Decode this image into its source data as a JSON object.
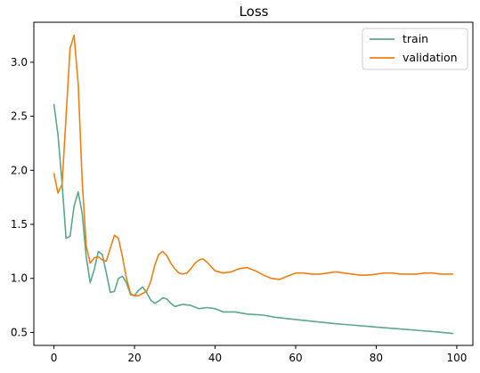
{
  "chart_data": {
    "type": "line",
    "title": "Loss",
    "xlabel": "",
    "ylabel": "",
    "xlim": [
      -5,
      104
    ],
    "ylim": [
      0.38,
      3.37
    ],
    "x_ticks": [
      0,
      20,
      40,
      60,
      80,
      100
    ],
    "y_ticks": [
      0.5,
      1.0,
      1.5,
      2.0,
      2.5,
      3.0
    ],
    "x_tick_labels": [
      "0",
      "20",
      "40",
      "60",
      "80",
      "100"
    ],
    "y_tick_labels": [
      "0.5",
      "1.0",
      "1.5",
      "2.0",
      "2.5",
      "3.0"
    ],
    "grid": false,
    "legend_position": "top-right",
    "series": [
      {
        "name": "train",
        "color": "#5aa78a",
        "points": [
          [
            0,
            2.61
          ],
          [
            1,
            2.33
          ],
          [
            2,
            1.88
          ],
          [
            3,
            1.37
          ],
          [
            4,
            1.39
          ],
          [
            5,
            1.67
          ],
          [
            6,
            1.8
          ],
          [
            7,
            1.6
          ],
          [
            8,
            1.2
          ],
          [
            9,
            0.96
          ],
          [
            10,
            1.08
          ],
          [
            11,
            1.25
          ],
          [
            12,
            1.22
          ],
          [
            13,
            1.05
          ],
          [
            14,
            0.87
          ],
          [
            15,
            0.88
          ],
          [
            16,
            1.0
          ],
          [
            17,
            1.02
          ],
          [
            18,
            0.96
          ],
          [
            19,
            0.85
          ],
          [
            20,
            0.84
          ],
          [
            21,
            0.89
          ],
          [
            22,
            0.92
          ],
          [
            23,
            0.87
          ],
          [
            24,
            0.8
          ],
          [
            25,
            0.77
          ],
          [
            26,
            0.79
          ],
          [
            27,
            0.82
          ],
          [
            28,
            0.81
          ],
          [
            29,
            0.77
          ],
          [
            30,
            0.74
          ],
          [
            32,
            0.76
          ],
          [
            34,
            0.75
          ],
          [
            36,
            0.72
          ],
          [
            38,
            0.73
          ],
          [
            40,
            0.72
          ],
          [
            42,
            0.69
          ],
          [
            45,
            0.69
          ],
          [
            48,
            0.67
          ],
          [
            52,
            0.66
          ],
          [
            55,
            0.64
          ],
          [
            60,
            0.62
          ],
          [
            65,
            0.6
          ],
          [
            70,
            0.58
          ],
          [
            75,
            0.565
          ],
          [
            80,
            0.55
          ],
          [
            85,
            0.535
          ],
          [
            90,
            0.52
          ],
          [
            95,
            0.505
          ],
          [
            99,
            0.49
          ]
        ]
      },
      {
        "name": "validation",
        "color": "#f07f12",
        "points": [
          [
            0,
            1.97
          ],
          [
            1,
            1.79
          ],
          [
            2,
            1.87
          ],
          [
            3,
            2.5
          ],
          [
            4,
            3.13
          ],
          [
            5,
            3.25
          ],
          [
            6,
            2.8
          ],
          [
            7,
            1.9
          ],
          [
            8,
            1.3
          ],
          [
            9,
            1.14
          ],
          [
            10,
            1.19
          ],
          [
            11,
            1.2
          ],
          [
            12,
            1.17
          ],
          [
            13,
            1.16
          ],
          [
            14,
            1.28
          ],
          [
            15,
            1.4
          ],
          [
            16,
            1.37
          ],
          [
            17,
            1.2
          ],
          [
            18,
            1.0
          ],
          [
            19,
            0.86
          ],
          [
            20,
            0.84
          ],
          [
            21,
            0.84
          ],
          [
            22,
            0.86
          ],
          [
            23,
            0.88
          ],
          [
            24,
            0.97
          ],
          [
            25,
            1.12
          ],
          [
            26,
            1.22
          ],
          [
            27,
            1.25
          ],
          [
            28,
            1.21
          ],
          [
            29,
            1.14
          ],
          [
            30,
            1.09
          ],
          [
            31,
            1.05
          ],
          [
            32,
            1.04
          ],
          [
            33,
            1.05
          ],
          [
            34,
            1.09
          ],
          [
            35,
            1.14
          ],
          [
            36,
            1.17
          ],
          [
            37,
            1.18
          ],
          [
            38,
            1.15
          ],
          [
            39,
            1.11
          ],
          [
            40,
            1.07
          ],
          [
            42,
            1.05
          ],
          [
            44,
            1.06
          ],
          [
            46,
            1.09
          ],
          [
            48,
            1.1
          ],
          [
            50,
            1.07
          ],
          [
            52,
            1.03
          ],
          [
            54,
            1.0
          ],
          [
            56,
            0.99
          ],
          [
            58,
            1.02
          ],
          [
            60,
            1.05
          ],
          [
            62,
            1.05
          ],
          [
            64,
            1.04
          ],
          [
            66,
            1.04
          ],
          [
            68,
            1.05
          ],
          [
            70,
            1.06
          ],
          [
            72,
            1.05
          ],
          [
            74,
            1.04
          ],
          [
            76,
            1.03
          ],
          [
            78,
            1.03
          ],
          [
            80,
            1.04
          ],
          [
            82,
            1.05
          ],
          [
            84,
            1.05
          ],
          [
            86,
            1.04
          ],
          [
            88,
            1.04
          ],
          [
            90,
            1.04
          ],
          [
            92,
            1.05
          ],
          [
            94,
            1.05
          ],
          [
            96,
            1.04
          ],
          [
            98,
            1.04
          ],
          [
            99,
            1.04
          ]
        ]
      }
    ]
  }
}
